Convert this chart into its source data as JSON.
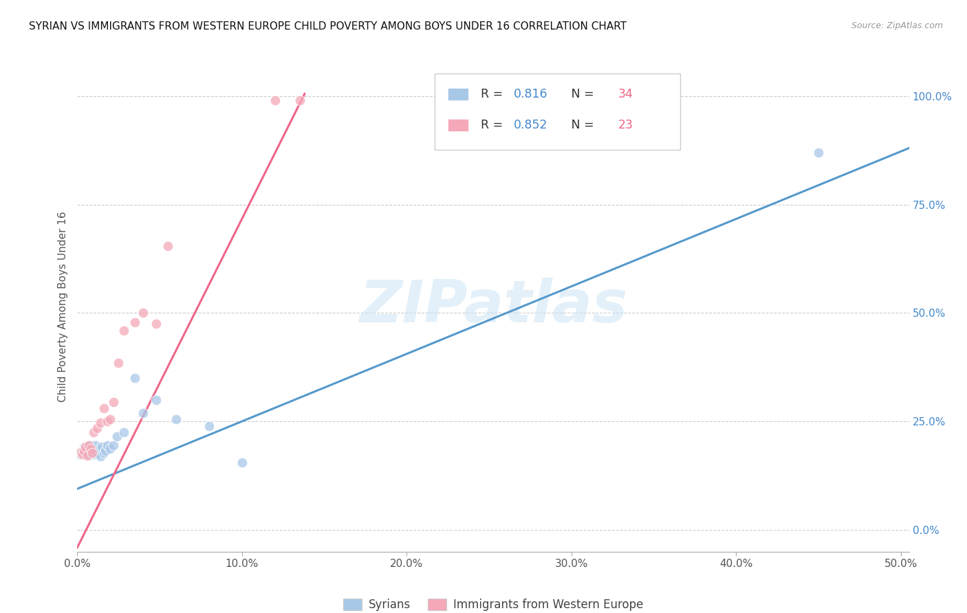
{
  "title": "SYRIAN VS IMMIGRANTS FROM WESTERN EUROPE CHILD POVERTY AMONG BOYS UNDER 16 CORRELATION CHART",
  "source": "Source: ZipAtlas.com",
  "ylabel": "Child Poverty Among Boys Under 16",
  "xlim": [
    0.0,
    0.505
  ],
  "ylim": [
    -0.05,
    1.08
  ],
  "xticks": [
    0.0,
    0.1,
    0.2,
    0.3,
    0.4,
    0.5
  ],
  "yticks_right": [
    0.0,
    0.25,
    0.5,
    0.75,
    1.0
  ],
  "blue_color": "#a8c8e8",
  "pink_color": "#f4a8b8",
  "blue_line_color": "#5599cc",
  "pink_line_color": "#ee6688",
  "stat_color": "#4488cc",
  "n_color": "#ee6688",
  "r_blue": "0.816",
  "n_blue": "34",
  "r_pink": "0.852",
  "n_pink": "23",
  "watermark": "ZIPatlas",
  "legend_labels": [
    "Syrians",
    "Immigrants from Western Europe"
  ],
  "blue_line_x0": 0.0,
  "blue_line_y0": 0.095,
  "blue_line_x1": 0.505,
  "blue_line_y1": 0.88,
  "pink_line_x0": 0.0,
  "pink_line_y0": -0.04,
  "pink_line_x1": 0.138,
  "pink_line_y1": 1.005,
  "blue_x": [
    0.002,
    0.003,
    0.004,
    0.004,
    0.005,
    0.005,
    0.006,
    0.006,
    0.007,
    0.007,
    0.008,
    0.008,
    0.009,
    0.01,
    0.01,
    0.011,
    0.012,
    0.013,
    0.014,
    0.015,
    0.016,
    0.017,
    0.018,
    0.02,
    0.022,
    0.024,
    0.028,
    0.035,
    0.04,
    0.048,
    0.06,
    0.08,
    0.1,
    0.45
  ],
  "blue_y": [
    0.175,
    0.18,
    0.19,
    0.185,
    0.178,
    0.183,
    0.192,
    0.185,
    0.175,
    0.188,
    0.182,
    0.195,
    0.18,
    0.188,
    0.175,
    0.195,
    0.178,
    0.185,
    0.17,
    0.192,
    0.178,
    0.182,
    0.195,
    0.188,
    0.195,
    0.215,
    0.225,
    0.35,
    0.27,
    0.3,
    0.255,
    0.24,
    0.155,
    0.87
  ],
  "pink_x": [
    0.002,
    0.003,
    0.004,
    0.005,
    0.006,
    0.007,
    0.008,
    0.009,
    0.01,
    0.012,
    0.014,
    0.016,
    0.018,
    0.02,
    0.022,
    0.025,
    0.028,
    0.035,
    0.04,
    0.048,
    0.055,
    0.12,
    0.135
  ],
  "pink_y": [
    0.18,
    0.175,
    0.182,
    0.192,
    0.172,
    0.195,
    0.188,
    0.178,
    0.225,
    0.235,
    0.248,
    0.28,
    0.25,
    0.255,
    0.295,
    0.385,
    0.46,
    0.478,
    0.5,
    0.475,
    0.655,
    0.99,
    0.99
  ]
}
